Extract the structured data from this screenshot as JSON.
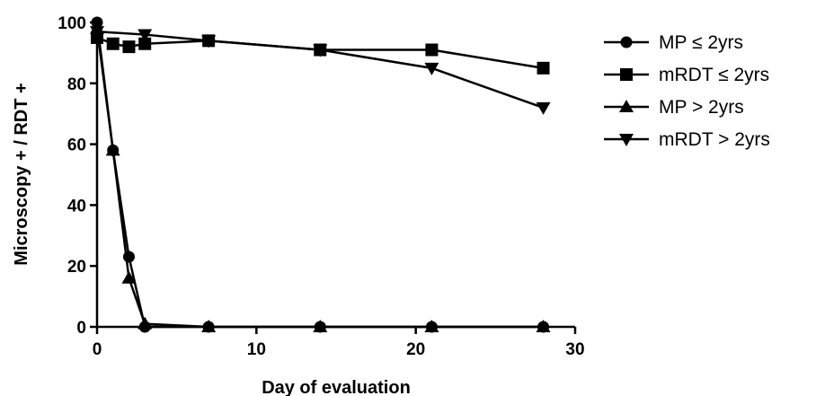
{
  "chart_data": {
    "type": "line",
    "xlabel": "Day of evaluation",
    "ylabel": "Microscopy + / RDT +",
    "xlim": [
      0,
      30
    ],
    "ylim": [
      0,
      100
    ],
    "xticks": [
      0,
      10,
      20,
      30
    ],
    "yticks": [
      0,
      20,
      40,
      60,
      80,
      100
    ],
    "grid": false,
    "legend_position": "top-right",
    "series": [
      {
        "name": "MP ≤ 2yrs",
        "marker": "circle",
        "x": [
          0,
          1,
          2,
          3,
          7,
          14,
          21,
          28
        ],
        "y": [
          100,
          58,
          23,
          0,
          0,
          0,
          0,
          0
        ]
      },
      {
        "name": "mRDT ≤ 2yrs",
        "marker": "square",
        "x": [
          0,
          1,
          2,
          3,
          7,
          14,
          21,
          28
        ],
        "y": [
          95,
          93,
          92,
          93,
          94,
          91,
          91,
          85
        ]
      },
      {
        "name": "MP > 2yrs",
        "marker": "triangle-up",
        "x": [
          0,
          1,
          2,
          3,
          7,
          14,
          21,
          28
        ],
        "y": [
          98,
          58,
          16,
          1,
          0,
          0,
          0,
          0
        ]
      },
      {
        "name": "mRDT > 2yrs",
        "marker": "triangle-down",
        "x": [
          0,
          3,
          7,
          14,
          21,
          28
        ],
        "y": [
          97,
          96,
          94,
          91,
          85,
          72
        ]
      }
    ]
  }
}
